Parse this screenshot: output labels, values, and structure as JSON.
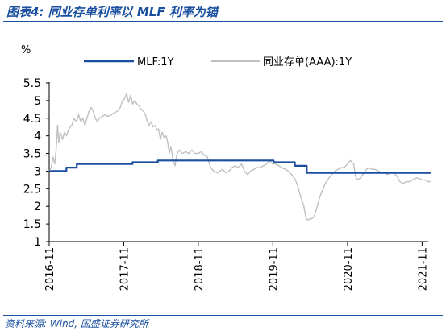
{
  "figure": {
    "title": "图表4: 同业存单利率以 MLF 利率为锚",
    "source": "资料来源: Wind, 国盛证券研究所"
  },
  "chart_data": {
    "type": "line",
    "ylabel": "%",
    "ylim": [
      1,
      5.5
    ],
    "yticks": [
      "1",
      "1.5",
      "2",
      "2.5",
      "3",
      "3.5",
      "4",
      "4.5",
      "5",
      "5.5"
    ],
    "xlim": [
      "2016-11",
      "2021-12"
    ],
    "xticks": [
      "2016-11",
      "2017-11",
      "2018-11",
      "2019-11",
      "2020-11",
      "2021-11"
    ],
    "legend_position": "top",
    "grid": false,
    "colors": {
      "mlf": "#1a4fa0",
      "ncd": "#c0c0c0",
      "axis": "#000000"
    },
    "series": [
      {
        "name": "MLF:1Y",
        "step": true,
        "points": [
          [
            "2016-11-01",
            3.0
          ],
          [
            "2017-01-24",
            3.1
          ],
          [
            "2017-03-16",
            3.2
          ],
          [
            "2017-12-14",
            3.25
          ],
          [
            "2018-04-17",
            3.3
          ],
          [
            "2019-11-05",
            3.25
          ],
          [
            "2020-02-17",
            3.15
          ],
          [
            "2020-04-15",
            2.95
          ],
          [
            "2021-12-15",
            2.95
          ]
        ]
      },
      {
        "name": "同业存单(AAA):1Y",
        "points": [
          [
            "2016-11-01",
            3.0
          ],
          [
            "2016-11-10",
            3.1
          ],
          [
            "2016-11-20",
            3.4
          ],
          [
            "2016-11-28",
            3.2
          ],
          [
            "2016-12-05",
            3.6
          ],
          [
            "2016-12-12",
            4.3
          ],
          [
            "2016-12-18",
            3.8
          ],
          [
            "2016-12-25",
            4.1
          ],
          [
            "2017-01-05",
            3.9
          ],
          [
            "2017-01-15",
            4.1
          ],
          [
            "2017-01-25",
            4.0
          ],
          [
            "2017-02-05",
            4.2
          ],
          [
            "2017-02-20",
            4.3
          ],
          [
            "2017-03-01",
            4.5
          ],
          [
            "2017-03-15",
            4.4
          ],
          [
            "2017-03-25",
            4.6
          ],
          [
            "2017-04-05",
            4.4
          ],
          [
            "2017-04-15",
            4.5
          ],
          [
            "2017-04-25",
            4.3
          ],
          [
            "2017-05-05",
            4.5
          ],
          [
            "2017-05-15",
            4.7
          ],
          [
            "2017-05-25",
            4.8
          ],
          [
            "2017-06-05",
            4.7
          ],
          [
            "2017-06-15",
            4.5
          ],
          [
            "2017-06-25",
            4.4
          ],
          [
            "2017-07-05",
            4.5
          ],
          [
            "2017-07-20",
            4.55
          ],
          [
            "2017-08-01",
            4.6
          ],
          [
            "2017-08-15",
            4.55
          ],
          [
            "2017-09-01",
            4.6
          ],
          [
            "2017-09-15",
            4.65
          ],
          [
            "2017-10-01",
            4.7
          ],
          [
            "2017-10-15",
            4.8
          ],
          [
            "2017-10-25",
            5.0
          ],
          [
            "2017-11-05",
            5.05
          ],
          [
            "2017-11-15",
            5.2
          ],
          [
            "2017-11-25",
            4.95
          ],
          [
            "2017-12-05",
            5.15
          ],
          [
            "2017-12-15",
            4.9
          ],
          [
            "2017-12-25",
            5.0
          ],
          [
            "2018-01-05",
            4.9
          ],
          [
            "2018-01-15",
            4.85
          ],
          [
            "2018-01-25",
            4.75
          ],
          [
            "2018-02-05",
            4.7
          ],
          [
            "2018-02-15",
            4.6
          ],
          [
            "2018-02-25",
            4.4
          ],
          [
            "2018-03-05",
            4.3
          ],
          [
            "2018-03-15",
            4.4
          ],
          [
            "2018-03-25",
            4.25
          ],
          [
            "2018-04-05",
            4.3
          ],
          [
            "2018-04-12",
            4.15
          ],
          [
            "2018-04-20",
            4.2
          ],
          [
            "2018-04-30",
            3.9
          ],
          [
            "2018-05-08",
            4.1
          ],
          [
            "2018-05-18",
            3.95
          ],
          [
            "2018-05-28",
            4.0
          ],
          [
            "2018-06-05",
            3.8
          ],
          [
            "2018-06-12",
            3.5
          ],
          [
            "2018-06-20",
            3.7
          ],
          [
            "2018-07-01",
            3.3
          ],
          [
            "2018-07-10",
            3.15
          ],
          [
            "2018-07-20",
            3.5
          ],
          [
            "2018-08-01",
            3.6
          ],
          [
            "2018-08-15",
            3.5
          ],
          [
            "2018-09-01",
            3.55
          ],
          [
            "2018-09-15",
            3.5
          ],
          [
            "2018-10-01",
            3.6
          ],
          [
            "2018-10-15",
            3.5
          ],
          [
            "2018-11-01",
            3.5
          ],
          [
            "2018-11-15",
            3.55
          ],
          [
            "2018-12-01",
            3.45
          ],
          [
            "2018-12-15",
            3.4
          ],
          [
            "2019-01-01",
            3.1
          ],
          [
            "2019-01-15",
            3.0
          ],
          [
            "2019-02-01",
            2.95
          ],
          [
            "2019-02-15",
            3.0
          ],
          [
            "2019-03-01",
            3.05
          ],
          [
            "2019-03-15",
            2.95
          ],
          [
            "2019-04-01",
            3.0
          ],
          [
            "2019-04-15",
            3.1
          ],
          [
            "2019-05-01",
            3.15
          ],
          [
            "2019-05-15",
            3.1
          ],
          [
            "2019-06-01",
            3.2
          ],
          [
            "2019-06-15",
            3.0
          ],
          [
            "2019-07-01",
            2.9
          ],
          [
            "2019-07-15",
            3.0
          ],
          [
            "2019-08-01",
            3.05
          ],
          [
            "2019-08-15",
            3.1
          ],
          [
            "2019-09-01",
            3.1
          ],
          [
            "2019-09-15",
            3.15
          ],
          [
            "2019-10-01",
            3.2
          ],
          [
            "2019-10-15",
            3.3
          ],
          [
            "2019-11-01",
            3.2
          ],
          [
            "2019-11-15",
            3.2
          ],
          [
            "2019-12-01",
            3.15
          ],
          [
            "2019-12-15",
            3.1
          ],
          [
            "2020-01-01",
            3.05
          ],
          [
            "2020-01-15",
            3.0
          ],
          [
            "2020-02-01",
            2.9
          ],
          [
            "2020-02-15",
            2.8
          ],
          [
            "2020-03-01",
            2.6
          ],
          [
            "2020-03-15",
            2.3
          ],
          [
            "2020-04-01",
            2.0
          ],
          [
            "2020-04-10",
            1.7
          ],
          [
            "2020-04-20",
            1.6
          ],
          [
            "2020-05-01",
            1.65
          ],
          [
            "2020-05-10",
            1.65
          ],
          [
            "2020-05-20",
            1.7
          ],
          [
            "2020-06-01",
            1.9
          ],
          [
            "2020-06-10",
            2.1
          ],
          [
            "2020-06-20",
            2.3
          ],
          [
            "2020-07-01",
            2.45
          ],
          [
            "2020-07-15",
            2.65
          ],
          [
            "2020-08-01",
            2.8
          ],
          [
            "2020-08-15",
            2.9
          ],
          [
            "2020-09-01",
            3.0
          ],
          [
            "2020-09-15",
            3.05
          ],
          [
            "2020-10-01",
            3.1
          ],
          [
            "2020-10-15",
            3.1
          ],
          [
            "2020-11-01",
            3.2
          ],
          [
            "2020-11-15",
            3.3
          ],
          [
            "2020-12-01",
            3.2
          ],
          [
            "2020-12-10",
            2.85
          ],
          [
            "2020-12-20",
            2.75
          ],
          [
            "2021-01-01",
            2.8
          ],
          [
            "2021-01-15",
            2.9
          ],
          [
            "2021-02-01",
            3.05
          ],
          [
            "2021-02-15",
            3.1
          ],
          [
            "2021-03-01",
            3.05
          ],
          [
            "2021-03-15",
            3.05
          ],
          [
            "2021-04-01",
            3.0
          ],
          [
            "2021-04-15",
            2.95
          ],
          [
            "2021-05-01",
            2.95
          ],
          [
            "2021-05-15",
            2.9
          ],
          [
            "2021-06-01",
            2.95
          ],
          [
            "2021-06-15",
            2.95
          ],
          [
            "2021-07-01",
            2.85
          ],
          [
            "2021-07-15",
            2.7
          ],
          [
            "2021-08-01",
            2.65
          ],
          [
            "2021-08-15",
            2.7
          ],
          [
            "2021-09-01",
            2.7
          ],
          [
            "2021-09-15",
            2.75
          ],
          [
            "2021-10-01",
            2.8
          ],
          [
            "2021-10-15",
            2.8
          ],
          [
            "2021-11-01",
            2.75
          ],
          [
            "2021-11-15",
            2.75
          ],
          [
            "2021-12-01",
            2.7
          ],
          [
            "2021-12-15",
            2.7
          ]
        ]
      }
    ]
  }
}
